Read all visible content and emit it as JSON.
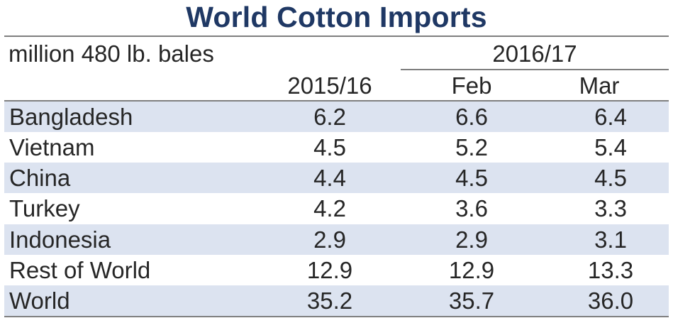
{
  "title": "World Cotton Imports",
  "unit_label": "million 480 lb. bales",
  "column_group": "2016/17",
  "columns": [
    "2015/16",
    "Feb",
    "Mar"
  ],
  "colors": {
    "title": "#1f3864",
    "row_shade": "#dce3f0",
    "rule": "#7f7f7f",
    "text": "#262626"
  },
  "chart_data": {
    "type": "table",
    "title": "World Cotton Imports",
    "unit": "million 480 lb. bales",
    "column_group": "2016/17",
    "columns": [
      "2015/16",
      "Feb",
      "Mar"
    ],
    "rows": [
      {
        "name": "Bangladesh",
        "values": [
          "6.2",
          "6.6",
          "6.4"
        ]
      },
      {
        "name": "Vietnam",
        "values": [
          "4.5",
          "5.2",
          "5.4"
        ]
      },
      {
        "name": "China",
        "values": [
          "4.4",
          "4.5",
          "4.5"
        ]
      },
      {
        "name": "Turkey",
        "values": [
          "4.2",
          "3.6",
          "3.3"
        ]
      },
      {
        "name": "Indonesia",
        "values": [
          "2.9",
          "2.9",
          "3.1"
        ]
      },
      {
        "name": "Rest of World",
        "values": [
          "12.9",
          "12.9",
          "13.3"
        ]
      },
      {
        "name": "World",
        "values": [
          "35.2",
          "35.7",
          "36.0"
        ]
      }
    ]
  }
}
